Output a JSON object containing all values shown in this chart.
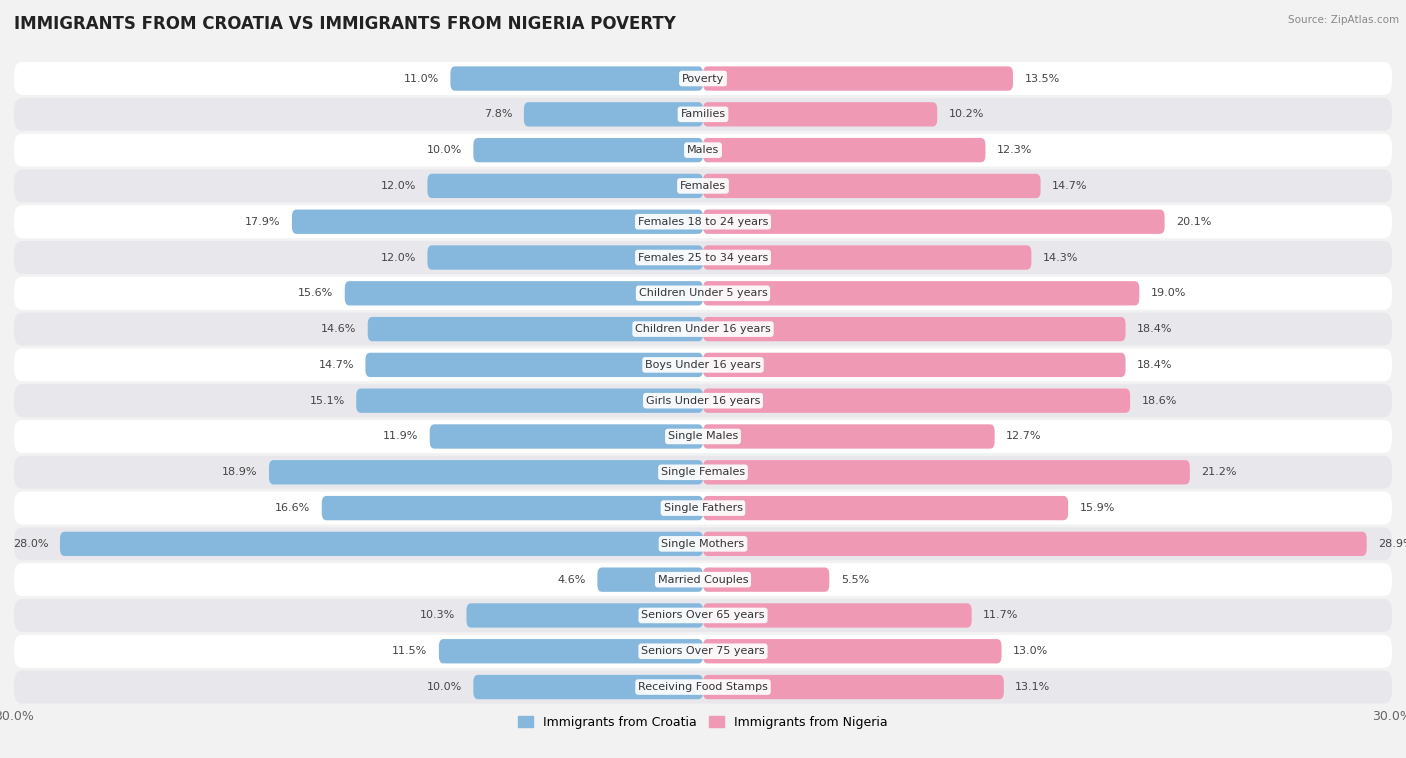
{
  "title": "IMMIGRANTS FROM CROATIA VS IMMIGRANTS FROM NIGERIA POVERTY",
  "source": "Source: ZipAtlas.com",
  "categories": [
    "Poverty",
    "Families",
    "Males",
    "Females",
    "Females 18 to 24 years",
    "Females 25 to 34 years",
    "Children Under 5 years",
    "Children Under 16 years",
    "Boys Under 16 years",
    "Girls Under 16 years",
    "Single Males",
    "Single Females",
    "Single Fathers",
    "Single Mothers",
    "Married Couples",
    "Seniors Over 65 years",
    "Seniors Over 75 years",
    "Receiving Food Stamps"
  ],
  "croatia_values": [
    11.0,
    7.8,
    10.0,
    12.0,
    17.9,
    12.0,
    15.6,
    14.6,
    14.7,
    15.1,
    11.9,
    18.9,
    16.6,
    28.0,
    4.6,
    10.3,
    11.5,
    10.0
  ],
  "nigeria_values": [
    13.5,
    10.2,
    12.3,
    14.7,
    20.1,
    14.3,
    19.0,
    18.4,
    18.4,
    18.6,
    12.7,
    21.2,
    15.9,
    28.9,
    5.5,
    11.7,
    13.0,
    13.1
  ],
  "croatia_color": "#85b8dc",
  "nigeria_color": "#f099b5",
  "croatia_label": "Immigrants from Croatia",
  "nigeria_label": "Immigrants from Nigeria",
  "axis_max": 30.0,
  "bar_height": 0.68,
  "background_color": "#f2f2f2",
  "row_colors_odd": "#ffffff",
  "row_colors_even": "#e8e8ec",
  "title_fontsize": 12,
  "label_fontsize": 8,
  "value_fontsize": 8,
  "legend_fontsize": 9
}
